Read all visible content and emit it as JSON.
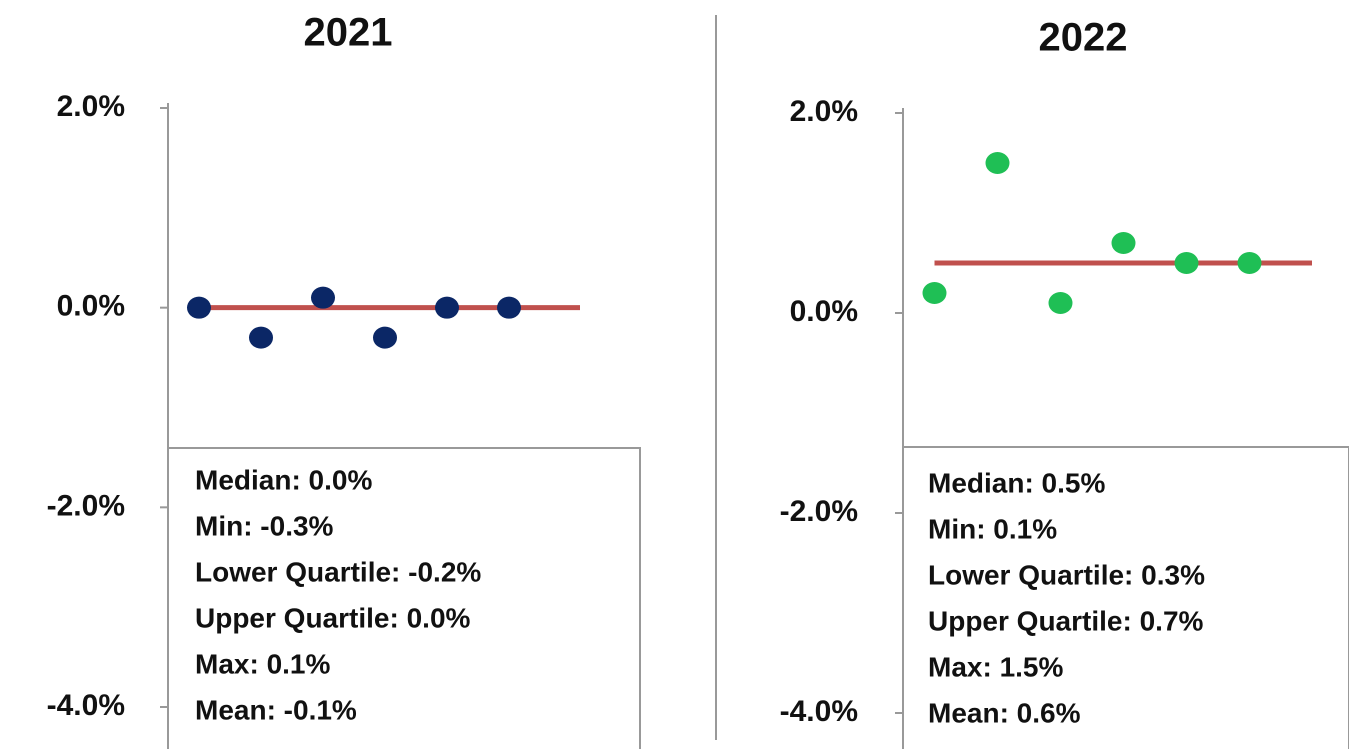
{
  "chart_data": [
    {
      "type": "scatter",
      "title": "2021",
      "categories": [
        null,
        null,
        null,
        null,
        null,
        null
      ],
      "series": [
        {
          "color": "#0b2766",
          "values": [
            0.0,
            -0.3,
            0.1,
            -0.3,
            0.0,
            0.0
          ]
        }
      ],
      "median_line": {
        "value": 0.0,
        "color": "#c0504d"
      },
      "ylim": [
        -4,
        2
      ],
      "yticks": [
        {
          "value": 2,
          "label": "2.0%"
        },
        {
          "value": 0,
          "label": "0.0%"
        },
        {
          "value": -2,
          "label": "-2.0%"
        },
        {
          "value": -4,
          "label": "-4.0%"
        }
      ],
      "annotations": [
        "Median: 0.0%",
        "Min: -0.3%",
        "Lower Quartile: -0.2%",
        "Upper Quartile: 0.0%",
        "Max: 0.1%",
        "Mean: -0.1%"
      ]
    },
    {
      "type": "scatter",
      "title": "2022",
      "categories": [
        null,
        null,
        null,
        null,
        null,
        null
      ],
      "series": [
        {
          "color": "#1fbf55",
          "values": [
            0.2,
            1.5,
            0.1,
            0.7,
            0.5,
            0.5
          ]
        }
      ],
      "median_line": {
        "value": 0.5,
        "color": "#c0504d"
      },
      "ylim": [
        -4,
        2
      ],
      "yticks": [
        {
          "value": 2,
          "label": "2.0%"
        },
        {
          "value": 0,
          "label": "0.0%"
        },
        {
          "value": -2,
          "label": "-2.0%"
        },
        {
          "value": -4,
          "label": "-4.0%"
        }
      ],
      "annotations": [
        "Median: 0.5%",
        "Min: 0.1%",
        "Lower Quartile: 0.3%",
        "Upper Quartile: 0.7%",
        "Max: 1.5%",
        "Mean: 0.6%"
      ]
    }
  ]
}
